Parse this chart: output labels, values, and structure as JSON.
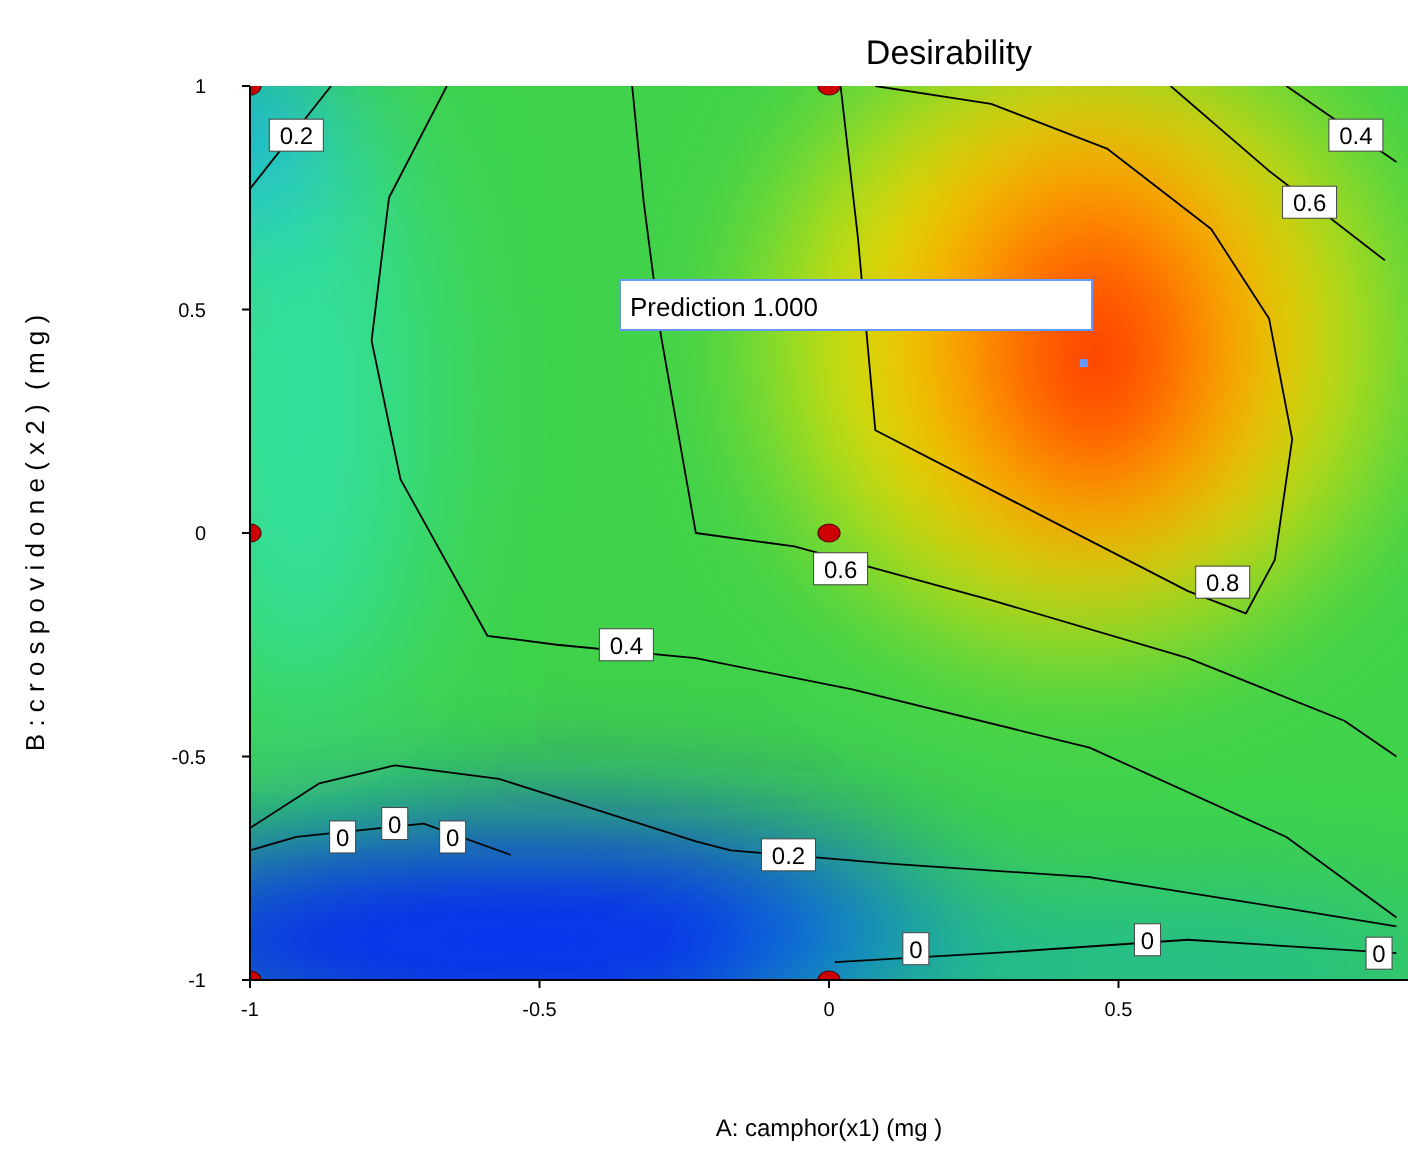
{
  "chart_data": {
    "type": "line",
    "title": "Desirability",
    "xlabel": "A: camphor(x1) (mg )",
    "ylabel": "B : c r o s p o v i d o n e ( x 2 )  ( m g )",
    "xlim": [
      -1,
      1
    ],
    "ylim": [
      -1,
      1
    ],
    "xticks": [
      -1,
      -0.5,
      0,
      0.5
    ],
    "yticks": [
      -1,
      -0.5,
      0,
      0.5,
      1
    ],
    "marker": "none",
    "series": [
      {
        "color": "#000000",
        "x": [
          0.02,
          0.05,
          0.08,
          0.35,
          0.62,
          0.72,
          0.77,
          0.8,
          0.76,
          0.66,
          0.48,
          0.28,
          0.08
        ],
        "values": [
          1,
          0.66,
          0.23,
          0.05,
          -0.13,
          -0.18,
          -0.06,
          0.21,
          0.48,
          0.68,
          0.86,
          0.96,
          1
        ]
      },
      {
        "color": "#010101",
        "x": [
          -0.34,
          -0.32,
          -0.29,
          -0.23,
          -0.06,
          0.28,
          0.62,
          0.89,
          0.98,
          null,
          0.59,
          0.76,
          0.96
        ],
        "values": [
          1,
          0.74,
          0.44,
          0,
          -0.03,
          -0.15,
          -0.28,
          -0.42,
          -0.5,
          null,
          1,
          0.81,
          0.61
        ]
      },
      {
        "color": "#020202",
        "x": [
          -0.66,
          -0.76,
          -0.79,
          -0.74,
          -0.59,
          -0.47,
          -0.23,
          0.04,
          0.45,
          0.79,
          0.98,
          null,
          0.79,
          0.98
        ],
        "values": [
          1,
          0.75,
          0.43,
          0.12,
          -0.23,
          -0.25,
          -0.28,
          -0.35,
          -0.48,
          -0.68,
          -0.86,
          null,
          1,
          0.83
        ]
      },
      {
        "color": "#030303",
        "x": [
          -0.86,
          -1,
          null,
          -1,
          -0.88,
          -0.75,
          -0.57,
          -0.4,
          -0.23,
          -0.17,
          0.11,
          0.45,
          0.79,
          0.98
        ],
        "values": [
          1,
          0.77,
          null,
          -0.66,
          -0.56,
          -0.52,
          -0.55,
          -0.62,
          -0.69,
          -0.71,
          -0.74,
          -0.77,
          -0.84,
          -0.88
        ]
      },
      {
        "color": "#040404",
        "x": [
          -1,
          -0.92,
          -0.7,
          -0.55,
          null,
          0.01,
          0.28,
          0.62,
          0.98
        ],
        "values": [
          -0.71,
          -0.68,
          -0.65,
          -0.72,
          null,
          -0.96,
          -0.94,
          -0.91,
          -0.94
        ]
      },
      {
        "type": "scatter",
        "color": "#cc0000",
        "marker": "circle",
        "x": [
          -1,
          0,
          -1,
          0,
          -1,
          0
        ],
        "values": [
          1,
          1,
          0,
          0,
          -1,
          -1
        ]
      },
      {
        "type": "scatter",
        "color": "#6699ff",
        "marker": "square",
        "x": [
          0.44
        ],
        "values": [
          0.38
        ]
      }
    ],
    "annotations": [
      {
        "text": "0.2",
        "x": -0.92,
        "y": 0.89
      },
      {
        "text": "0.4",
        "x": 0.91,
        "y": 0.89
      },
      {
        "text": "0.6",
        "x": 0.83,
        "y": 0.74
      },
      {
        "text": "0.6",
        "x": 0.02,
        "y": -0.08
      },
      {
        "text": "0.8",
        "x": 0.68,
        "y": -0.11
      },
      {
        "text": "0.4",
        "x": -0.35,
        "y": -0.25
      },
      {
        "text": "0",
        "x": -0.84,
        "y": -0.68
      },
      {
        "text": "0",
        "x": -0.75,
        "y": -0.65
      },
      {
        "text": "0",
        "x": -0.65,
        "y": -0.68
      },
      {
        "text": "0.2",
        "x": -0.07,
        "y": -0.72
      },
      {
        "text": "0",
        "x": 0.15,
        "y": -0.93
      },
      {
        "text": "0",
        "x": 0.55,
        "y": -0.91
      },
      {
        "text": "0",
        "x": 0.95,
        "y": -0.94
      },
      "Prediction 1.000"
    ]
  }
}
